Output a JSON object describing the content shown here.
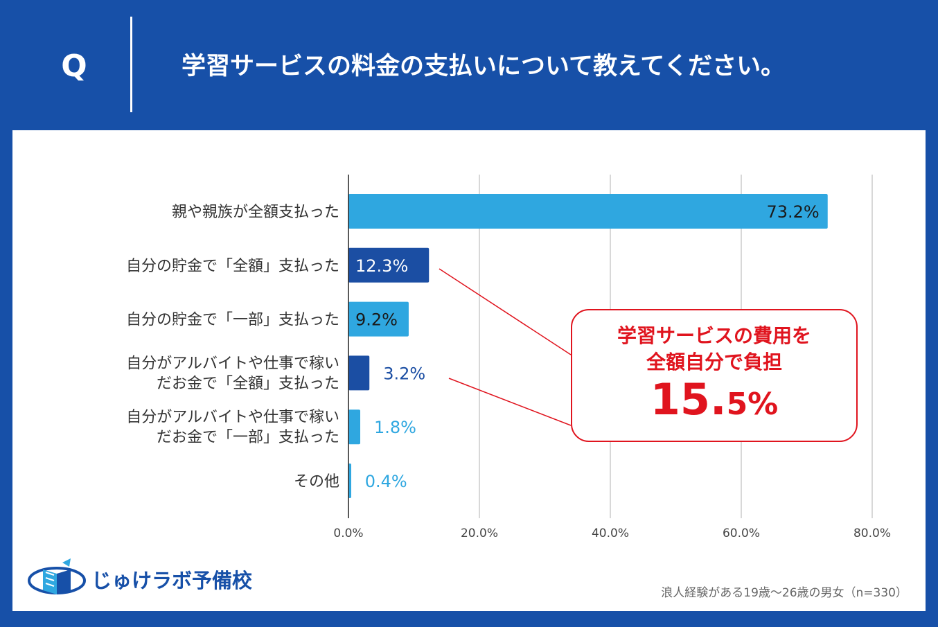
{
  "header": {
    "q_mark": "Q",
    "question": "学習サービスの料金の支払いについて教えてください。"
  },
  "colors": {
    "background": "#1750a8",
    "bar_light": "#2fa7e0",
    "bar_dark": "#1b4ea3",
    "callout_red": "#e0141e",
    "grid": "#cccccc"
  },
  "chart_data": {
    "type": "bar",
    "orientation": "horizontal",
    "title": "学習サービスの料金の支払いについて教えてください。",
    "xlabel": "",
    "ylabel": "",
    "xlim": [
      0,
      80
    ],
    "grid": true,
    "x_ticks": [
      0,
      20,
      40,
      60,
      80
    ],
    "x_tick_labels": [
      "0.0%",
      "20.0%",
      "40.0%",
      "60.0%",
      "80.0%"
    ],
    "categories": [
      [
        "親や親族が全額支払った"
      ],
      [
        "自分の貯金で「全額」支払った"
      ],
      [
        "自分の貯金で「一部」支払った"
      ],
      [
        "自分がアルバイトや仕事で稼い",
        "だお金で「全額」支払った"
      ],
      [
        "自分がアルバイトや仕事で稼い",
        "だお金で「一部」支払った"
      ],
      [
        "その他"
      ]
    ],
    "values": [
      73.2,
      12.3,
      9.2,
      3.2,
      1.8,
      0.4
    ],
    "value_labels": [
      "73.2%",
      "12.3%",
      "9.2%",
      "3.2%",
      "1.8%",
      "0.4%"
    ],
    "highlighted": [
      false,
      true,
      false,
      true,
      false,
      false
    ],
    "callout": {
      "line1": "学習サービスの費用を",
      "line2": "全額自分で負担",
      "value_int": "15.",
      "value_dec": "5%"
    }
  },
  "logo": {
    "text": "じゅけラボ予備校",
    "icon": "book-logo-icon"
  },
  "footnote": "浪人経験がある19歳～26歳の男女（n=330）"
}
